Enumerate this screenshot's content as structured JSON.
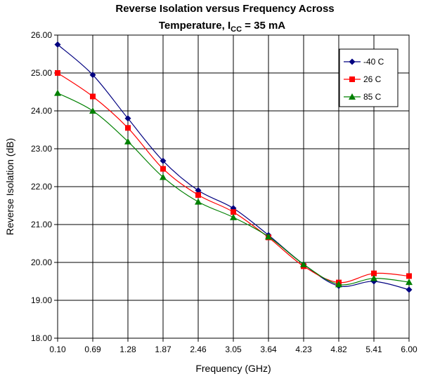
{
  "chart_data": {
    "type": "line",
    "title_line1": "Reverse Isolation versus Frequency Across",
    "title_line2_prefix": "Temperature, I",
    "title_line2_subscript": "CC",
    "title_line2_suffix": " = 35 mA",
    "xlabel": "Frequency (GHz)",
    "ylabel": "Reverse Isolation (dB)",
    "x": [
      0.1,
      0.69,
      1.28,
      1.87,
      2.46,
      3.05,
      3.64,
      4.23,
      4.82,
      5.41,
      6.0
    ],
    "x_tick_labels": [
      "0.10",
      "0.69",
      "1.28",
      "1.87",
      "2.46",
      "3.05",
      "3.64",
      "4.23",
      "4.82",
      "5.41",
      "6.00"
    ],
    "y_tick_labels": [
      "18.00",
      "19.00",
      "20.00",
      "21.00",
      "22.00",
      "23.00",
      "24.00",
      "25.00",
      "26.00"
    ],
    "ylim": [
      18,
      26
    ],
    "grid": true,
    "legend_position": "top-right",
    "series": [
      {
        "name": "-40 C",
        "color": "#000080",
        "marker": "diamond",
        "values": [
          25.75,
          24.95,
          23.8,
          22.68,
          21.9,
          21.43,
          20.72,
          19.95,
          19.38,
          19.5,
          19.28
        ]
      },
      {
        "name": "26 C",
        "color": "#ff0000",
        "marker": "square",
        "values": [
          25.0,
          24.38,
          23.55,
          22.47,
          21.78,
          21.33,
          20.66,
          19.9,
          19.47,
          19.71,
          19.64
        ]
      },
      {
        "name": "85 C",
        "color": "#008000",
        "marker": "triangle",
        "values": [
          24.47,
          24.0,
          23.19,
          22.25,
          21.6,
          21.19,
          20.68,
          19.95,
          19.42,
          19.58,
          19.48
        ]
      }
    ]
  }
}
